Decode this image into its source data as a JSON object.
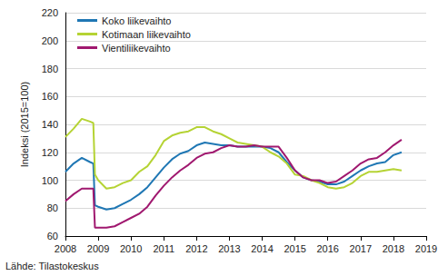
{
  "chart_data": {
    "type": "line",
    "y_label": "Indeksi (2015=100)",
    "source": "Lähde: Tilastokeskus",
    "x": [
      2008.0,
      2008.25,
      2008.5,
      2008.75,
      2008.85,
      2008.9,
      2009.0,
      2009.25,
      2009.5,
      2009.75,
      2010.0,
      2010.25,
      2010.5,
      2010.75,
      2011.0,
      2011.25,
      2011.5,
      2011.75,
      2012.0,
      2012.25,
      2012.5,
      2012.75,
      2013.0,
      2013.25,
      2013.5,
      2013.75,
      2014.0,
      2014.25,
      2014.5,
      2014.75,
      2015.0,
      2015.25,
      2015.5,
      2015.75,
      2016.0,
      2016.25,
      2016.5,
      2016.75,
      2017.0,
      2017.25,
      2017.5,
      2017.75,
      2018.0,
      2018.25
    ],
    "series": [
      {
        "name": "Koko liikevaihto",
        "color": "#1f77b4",
        "values": [
          106,
          112,
          116,
          113,
          112,
          82,
          81,
          79,
          80,
          83,
          86,
          90,
          95,
          102,
          109,
          115,
          119,
          121,
          125,
          127,
          126,
          125,
          125,
          124,
          124,
          124,
          124,
          123,
          120,
          113,
          107,
          102,
          100,
          99,
          97,
          97,
          99,
          103,
          107,
          110,
          112,
          113,
          118,
          120
        ]
      },
      {
        "name": "Kotimaan liikevaihto",
        "color": "#b5d334",
        "values": [
          131,
          137,
          144,
          142,
          141,
          104,
          100,
          94,
          95,
          98,
          100,
          106,
          110,
          118,
          128,
          132,
          134,
          135,
          138,
          138,
          135,
          133,
          130,
          127,
          126,
          125,
          124,
          120,
          117,
          112,
          104,
          103,
          100,
          98,
          95,
          94,
          95,
          98,
          103,
          106,
          106,
          107,
          108,
          107
        ]
      },
      {
        "name": "Vientiliikevaihto",
        "color": "#a0186f",
        "values": [
          85,
          90,
          94,
          94,
          94,
          66,
          66,
          66,
          67,
          70,
          73,
          76,
          81,
          89,
          96,
          102,
          107,
          111,
          116,
          119,
          120,
          123,
          125,
          124,
          124,
          125,
          124,
          124,
          124,
          116,
          107,
          102,
          100,
          100,
          98,
          99,
          103,
          107,
          112,
          115,
          116,
          120,
          125,
          129
        ]
      }
    ],
    "xlim": [
      2008,
      2019
    ],
    "xticks": [
      2008,
      2009,
      2010,
      2011,
      2012,
      2013,
      2014,
      2015,
      2016,
      2017,
      2018,
      2019
    ],
    "ylim": [
      60,
      220
    ],
    "yticks": [
      60,
      80,
      100,
      120,
      140,
      160,
      180,
      200,
      220
    ],
    "grid": true,
    "legend": "top-left"
  }
}
